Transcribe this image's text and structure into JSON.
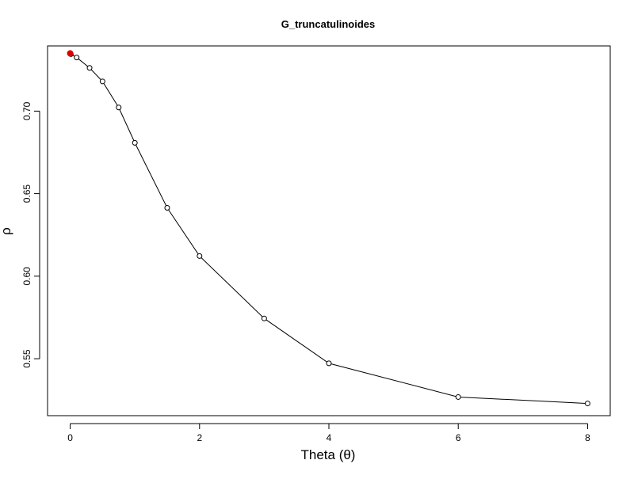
{
  "chart_data": {
    "type": "line",
    "title": "G_truncatulinoides",
    "xlabel": "Theta (θ)",
    "ylabel": "ρ",
    "xlim": [
      -0.35,
      8.35
    ],
    "ylim": [
      0.5155,
      0.7395
    ],
    "xticks": [
      0,
      2,
      4,
      6,
      8
    ],
    "xtick_labels": [
      "0",
      "2",
      "4",
      "6",
      "8"
    ],
    "yticks": [
      0.55,
      0.6,
      0.65,
      0.7
    ],
    "ytick_labels": [
      "0.55",
      "0.60",
      "0.65",
      "0.70"
    ],
    "grid": false,
    "series": [
      {
        "x": [
          0.01,
          0.1,
          0.3,
          0.5,
          0.75,
          1.0,
          1.5,
          2.0,
          3.0,
          4.0,
          6.0,
          8.0
        ],
        "y": [
          0.7345,
          0.7325,
          0.7262,
          0.718,
          0.7022,
          0.6808,
          0.6414,
          0.6122,
          0.5744,
          0.5472,
          0.5268,
          0.5229
        ],
        "color": "#000000"
      }
    ],
    "highlight": {
      "x": 0.0,
      "y": 0.735,
      "color": "#dd0000"
    }
  }
}
